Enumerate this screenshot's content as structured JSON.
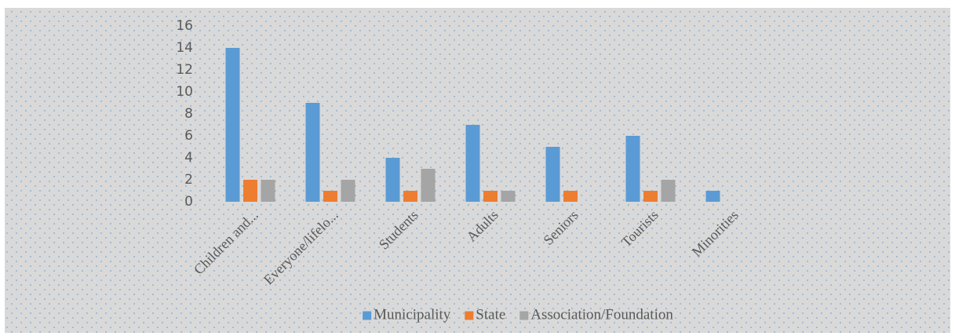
{
  "chart_data": {
    "type": "bar",
    "categories": [
      "Children and...",
      "Everyone/lifelo...",
      "Students",
      "Adults",
      "Seniors",
      "Tourists",
      "Minorities"
    ],
    "series": [
      {
        "name": "Municipality",
        "color": "#5b9bd5",
        "values": [
          14,
          9,
          4,
          7,
          5,
          6,
          1
        ]
      },
      {
        "name": "State",
        "color": "#ed7d31",
        "values": [
          2,
          1,
          1,
          1,
          1,
          1,
          0
        ]
      },
      {
        "name": "Association/Foundation",
        "color": "#a5a5a5",
        "values": [
          2,
          2,
          3,
          1,
          0,
          2,
          0
        ]
      }
    ],
    "ylim": [
      0,
      16
    ],
    "yticks": [
      0,
      2,
      4,
      6,
      8,
      10,
      12,
      14,
      16
    ],
    "grid": false,
    "legend": "bottom"
  }
}
